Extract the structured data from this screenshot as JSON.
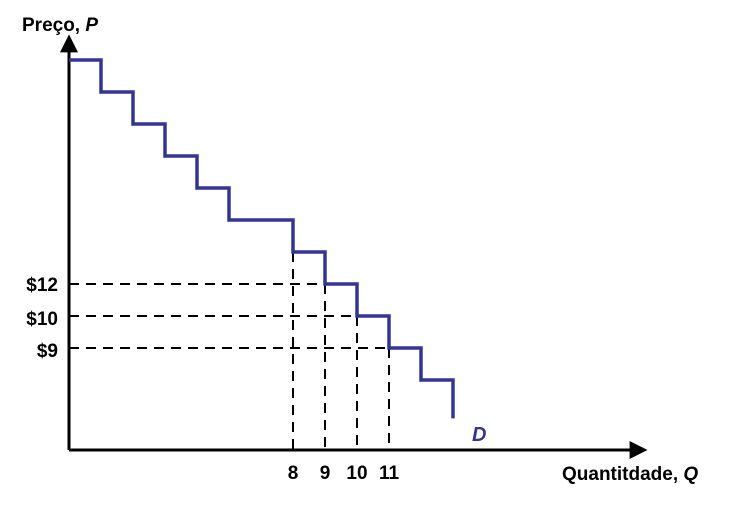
{
  "chart_data": {
    "type": "line",
    "title": "",
    "ylabel": "Preço,",
    "ylabel_var": "P",
    "xlabel": "Quantitdade,",
    "xlabel_var": "Q",
    "series": [
      {
        "name": "D",
        "step_points": [
          {
            "q": 0,
            "p": 18
          },
          {
            "q": 1,
            "p": 18
          },
          {
            "q": 1,
            "p": 17
          },
          {
            "q": 2,
            "p": 17
          },
          {
            "q": 2,
            "p": 16
          },
          {
            "q": 3,
            "p": 16
          },
          {
            "q": 3,
            "p": 15
          },
          {
            "q": 4,
            "p": 15
          },
          {
            "q": 4,
            "p": 14
          },
          {
            "q": 5,
            "p": 14
          },
          {
            "q": 5,
            "p": 13
          },
          {
            "q": 7,
            "p": 13
          },
          {
            "q": 7,
            "p": 12
          },
          {
            "q": 8,
            "p": 12
          },
          {
            "q": 8,
            "p": 11
          },
          {
            "q": 9,
            "p": 11
          },
          {
            "q": 9,
            "p": 10
          },
          {
            "q": 10,
            "p": 10
          },
          {
            "q": 10,
            "p": 9
          },
          {
            "q": 11,
            "p": 9
          },
          {
            "q": 11,
            "p": 8
          },
          {
            "q": 12,
            "p": 8
          },
          {
            "q": 12,
            "p": 7
          },
          {
            "q": 12,
            "p": 6.8
          }
        ]
      }
    ],
    "y_ticks": [
      {
        "label": "$12"
      },
      {
        "label": "$10"
      },
      {
        "label": "$9"
      }
    ],
    "x_ticks": [
      {
        "label": "8"
      },
      {
        "label": "9"
      },
      {
        "label": "10"
      },
      {
        "label": "11"
      }
    ],
    "guides": [
      {
        "p": 11,
        "q_end": 7
      },
      {
        "p": 10,
        "q_end": 8
      },
      {
        "p": 9,
        "q_end": 9
      }
    ],
    "vguides": [
      7,
      8,
      9,
      10
    ],
    "curve_label": "D",
    "colors": {
      "curve": "#333399",
      "axis": "#000000",
      "guide": "#000000"
    }
  }
}
